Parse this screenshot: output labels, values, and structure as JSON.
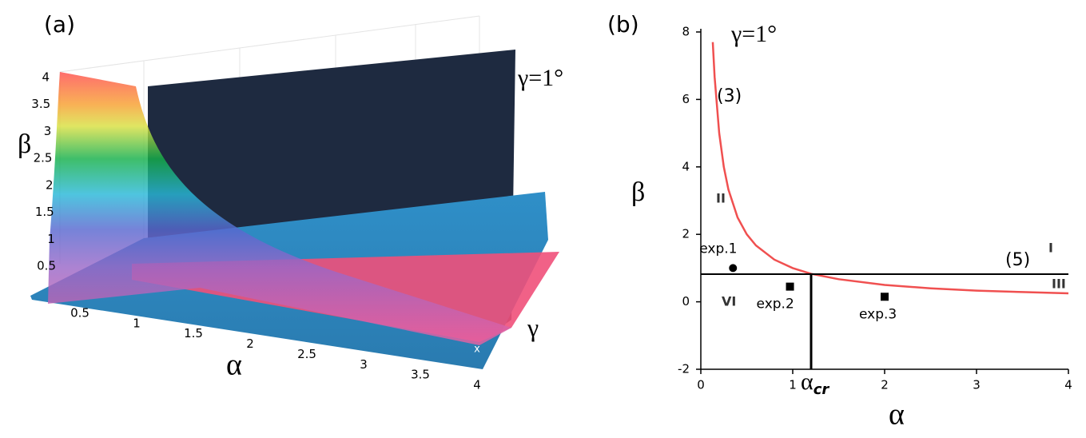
{
  "chart_data": [
    {
      "type": "surface",
      "panel_label": "(a)",
      "annotation": "γ=1°",
      "x_label": "α",
      "y_label": "β",
      "z_label": "γ",
      "xlim": [
        0.5,
        4
      ],
      "ylim": [
        0.5,
        4
      ],
      "xticks": [
        0.5,
        1,
        1.5,
        2,
        2.5,
        3,
        3.5,
        4
      ],
      "yticks": [
        0.5,
        1,
        1.5,
        2,
        2.5,
        3,
        3.5,
        4
      ]
    },
    {
      "type": "line",
      "panel_label": "(b)",
      "annotation": "γ=1°",
      "x_label": "α",
      "y_label": "β",
      "xlim": [
        0,
        4
      ],
      "ylim": [
        -2,
        8
      ],
      "xticks": [
        0,
        1,
        2,
        3,
        4
      ],
      "yticks": [
        -2,
        0,
        2,
        4,
        6,
        8
      ],
      "series": [
        {
          "name": "(3)",
          "color": "#f05050",
          "x": [
            0.13,
            0.15,
            0.2,
            0.25,
            0.3,
            0.4,
            0.5,
            0.6,
            0.8,
            1,
            1.2,
            1.5,
            2,
            2.5,
            3,
            3.5,
            4
          ],
          "values": [
            7.7,
            6.67,
            5,
            4,
            3.33,
            2.5,
            2,
            1.67,
            1.25,
            1,
            0.83,
            0.67,
            0.5,
            0.4,
            0.33,
            0.29,
            0.25
          ]
        },
        {
          "name": "(5)",
          "color": "#000000",
          "x": [
            0,
            4
          ],
          "values": [
            0.82,
            0.82
          ]
        }
      ],
      "alpha_cr": {
        "value": 1.2,
        "label_main": "α",
        "label_sub": "cr"
      },
      "points": [
        {
          "label": "exp.1",
          "x": 0.35,
          "y": 1.0,
          "marker": "circle"
        },
        {
          "label": "exp.2",
          "x": 0.97,
          "y": 0.45,
          "marker": "square"
        },
        {
          "label": "exp.3",
          "x": 2.0,
          "y": 0.15,
          "marker": "square"
        }
      ],
      "regions": [
        "I",
        "II",
        "III",
        "VI"
      ]
    }
  ]
}
